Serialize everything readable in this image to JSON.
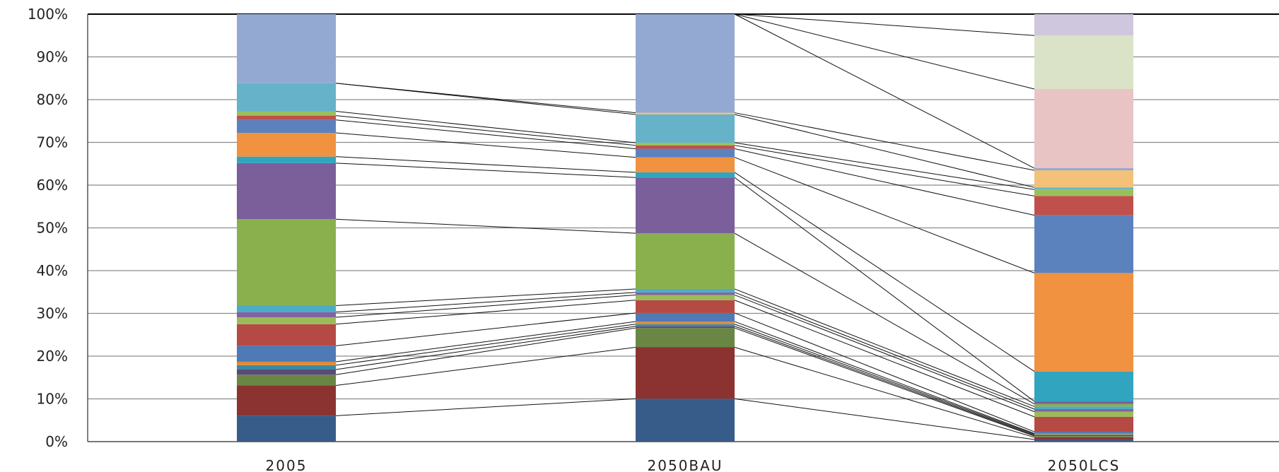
{
  "chart_data": {
    "type": "bar",
    "stacked": true,
    "percent_stacked": true,
    "categories": [
      "2005",
      "2050BAU",
      "2050LCS"
    ],
    "ylim": [
      0,
      100
    ],
    "y_ticks": [
      0,
      10,
      20,
      30,
      40,
      50,
      60,
      70,
      80,
      90,
      100
    ],
    "y_tick_labels": [
      "0%",
      "10%",
      "20%",
      "30%",
      "40%",
      "50%",
      "60%",
      "70%",
      "80%",
      "90%",
      "100%"
    ],
    "grid": true,
    "series_lines": true,
    "legend": "none",
    "series": [
      {
        "color": "#385c8a",
        "values": [
          6,
          10,
          0.5
        ]
      },
      {
        "color": "#8b3331",
        "values": [
          7,
          12,
          0.5
        ]
      },
      {
        "color": "#6a8644",
        "values": [
          2.5,
          4.5,
          0.3
        ]
      },
      {
        "color": "#5a4a7a",
        "values": [
          1.2,
          0.4,
          0.2
        ]
      },
      {
        "color": "#3b8a9e",
        "values": [
          1,
          0.5,
          0.2
        ]
      },
      {
        "color": "#e08a3a",
        "values": [
          0.8,
          0.6,
          0.2
        ]
      },
      {
        "color": "#4e7ab5",
        "values": [
          3.7,
          2,
          0.4
        ]
      },
      {
        "color": "#b54a45",
        "values": [
          5,
          3,
          3.5
        ]
      },
      {
        "color": "#9bbb59",
        "values": [
          1.6,
          1.2,
          1.2
        ]
      },
      {
        "color": "#8064a2",
        "values": [
          1.2,
          0.6,
          0.6
        ]
      },
      {
        "color": "#4bacc6",
        "values": [
          1.5,
          0.8,
          0.6
        ]
      },
      {
        "color": "#8ab04e",
        "values": [
          20,
          13,
          0.6
        ]
      },
      {
        "color": "#7a5f9a",
        "values": [
          13,
          13,
          0.6
        ]
      },
      {
        "color": "#31a4c0",
        "values": [
          1.5,
          1.2,
          7
        ]
      },
      {
        "color": "#f0923f",
        "values": [
          5.5,
          3.5,
          23
        ]
      },
      {
        "color": "#5c82be",
        "values": [
          3,
          2,
          13.5
        ]
      },
      {
        "color": "#c0504d",
        "values": [
          1,
          0.8,
          4.5
        ]
      },
      {
        "color": "#9bc05a",
        "values": [
          1,
          0.6,
          1.5
        ]
      },
      {
        "color": "#66b2c9",
        "values": [
          6.5,
          6.6,
          0.5
        ]
      },
      {
        "color": "#f3c177",
        "values": [
          0,
          0.4,
          4
        ]
      },
      {
        "color": "#93a9d2",
        "values": [
          16,
          23,
          0.5
        ]
      },
      {
        "color": "#e8c4c4",
        "values": [
          0,
          0,
          18.5
        ]
      },
      {
        "color": "#dae3c8",
        "values": [
          0,
          0,
          12.5
        ]
      },
      {
        "color": "#cfc7dd",
        "values": [
          0,
          0,
          5
        ]
      }
    ]
  }
}
